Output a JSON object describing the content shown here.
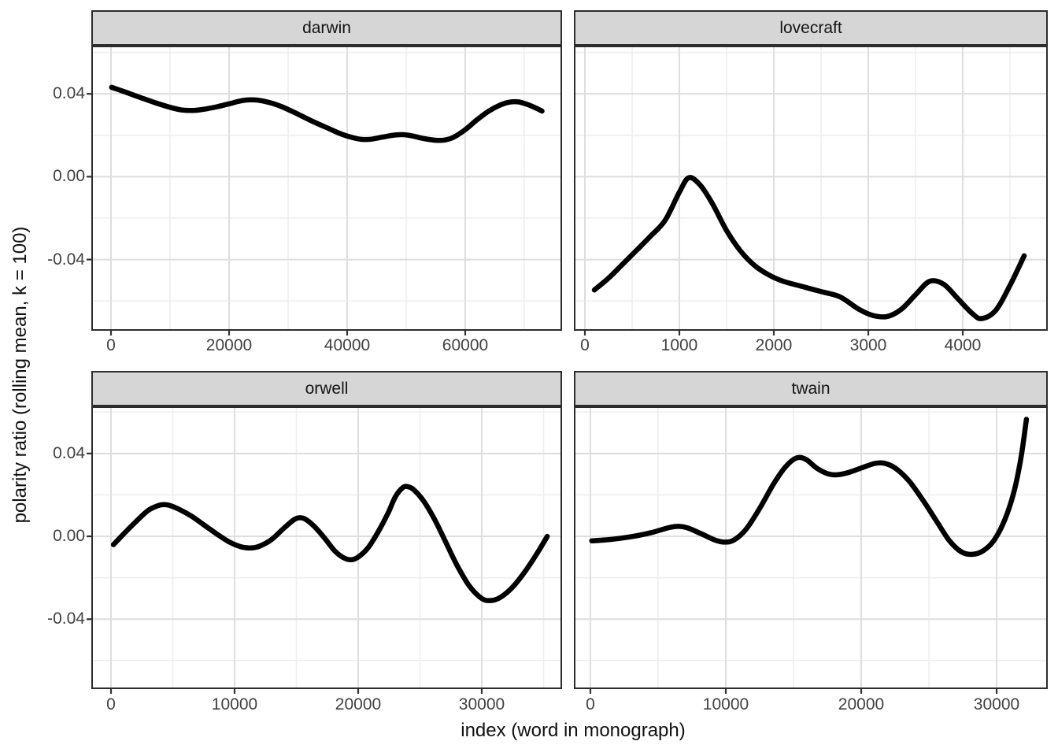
{
  "figure": {
    "x_axis_title": "index (word in monograph)",
    "y_axis_title": "polarity ratio (rolling mean, k = 100)",
    "colors": {
      "line": "#000000",
      "strip_background": "#d6d6d6",
      "panel_border": "#2d2d2d",
      "grid_major": "#dedede",
      "grid_minor": "#efefef",
      "tick_mark": "#333333",
      "tick_text": "#414141",
      "title_text": "#111111"
    },
    "y_axis": {
      "ticks": [
        {
          "value": 0.04,
          "label": "0.04"
        },
        {
          "value": 0.0,
          "label": "0.00"
        },
        {
          "value": -0.04,
          "label": "-0.04"
        }
      ],
      "minor_breaks": [
        0.06,
        0.02,
        -0.02,
        -0.06
      ]
    }
  },
  "chart_data": {
    "type": "line",
    "title": "",
    "xlabel": "index (word in monograph)",
    "ylabel": "polarity ratio (rolling mean, k = 100)",
    "ylim": [
      -0.074,
      0.063
    ],
    "grid": "on",
    "legend": "none",
    "facets": [
      {
        "label": "darwin",
        "xlim": [
          -3067,
          76133
        ],
        "x_ticks": [
          {
            "value": 0,
            "label": "0"
          },
          {
            "value": 20000,
            "label": "20000"
          },
          {
            "value": 40000,
            "label": "40000"
          },
          {
            "value": 60000,
            "label": "60000"
          }
        ],
        "x_minor": [
          10000,
          30000,
          50000,
          70000
        ],
        "points": [
          [
            100,
            0.0432
          ],
          [
            2500,
            0.0408
          ],
          [
            5000,
            0.0382
          ],
          [
            7500,
            0.0357
          ],
          [
            10000,
            0.0335
          ],
          [
            12000,
            0.0322
          ],
          [
            14000,
            0.032
          ],
          [
            16000,
            0.0327
          ],
          [
            18000,
            0.0338
          ],
          [
            20000,
            0.0352
          ],
          [
            22000,
            0.0366
          ],
          [
            23500,
            0.0371
          ],
          [
            25000,
            0.0369
          ],
          [
            27000,
            0.0357
          ],
          [
            29000,
            0.0337
          ],
          [
            31000,
            0.0311
          ],
          [
            33000,
            0.0283
          ],
          [
            35000,
            0.0256
          ],
          [
            37000,
            0.0231
          ],
          [
            39000,
            0.0206
          ],
          [
            41000,
            0.0188
          ],
          [
            42500,
            0.018
          ],
          [
            44000,
            0.0181
          ],
          [
            46000,
            0.0191
          ],
          [
            48000,
            0.0201
          ],
          [
            49500,
            0.0203
          ],
          [
            51000,
            0.0197
          ],
          [
            53000,
            0.0184
          ],
          [
            55000,
            0.0176
          ],
          [
            56500,
            0.0177
          ],
          [
            58000,
            0.019
          ],
          [
            60000,
            0.0227
          ],
          [
            62000,
            0.0275
          ],
          [
            64000,
            0.0317
          ],
          [
            66000,
            0.0347
          ],
          [
            67500,
            0.036
          ],
          [
            69000,
            0.0361
          ],
          [
            70500,
            0.0349
          ],
          [
            72000,
            0.0331
          ],
          [
            73000,
            0.0317
          ]
        ]
      },
      {
        "label": "lovecraft",
        "xlim": [
          -100,
          4883
        ],
        "x_ticks": [
          {
            "value": 0,
            "label": "0"
          },
          {
            "value": 1000,
            "label": "1000"
          },
          {
            "value": 2000,
            "label": "2000"
          },
          {
            "value": 3000,
            "label": "3000"
          },
          {
            "value": 4000,
            "label": "4000"
          }
        ],
        "x_minor": [
          500,
          1500,
          2500,
          3500,
          4500
        ],
        "points": [
          [
            100,
            -0.0547
          ],
          [
            250,
            -0.049
          ],
          [
            400,
            -0.0422
          ],
          [
            550,
            -0.0354
          ],
          [
            700,
            -0.0285
          ],
          [
            850,
            -0.021
          ],
          [
            1000,
            -0.0075
          ],
          [
            1100,
            -0.0005
          ],
          [
            1220,
            -0.004
          ],
          [
            1350,
            -0.013
          ],
          [
            1500,
            -0.026
          ],
          [
            1650,
            -0.036
          ],
          [
            1800,
            -0.043
          ],
          [
            1950,
            -0.0475
          ],
          [
            2100,
            -0.0505
          ],
          [
            2300,
            -0.053
          ],
          [
            2500,
            -0.0555
          ],
          [
            2700,
            -0.058
          ],
          [
            2900,
            -0.064
          ],
          [
            3050,
            -0.067
          ],
          [
            3200,
            -0.0675
          ],
          [
            3350,
            -0.064
          ],
          [
            3500,
            -0.057
          ],
          [
            3650,
            -0.0505
          ],
          [
            3800,
            -0.052
          ],
          [
            3950,
            -0.059
          ],
          [
            4100,
            -0.066
          ],
          [
            4200,
            -0.0685
          ],
          [
            4350,
            -0.0645
          ],
          [
            4500,
            -0.0525
          ],
          [
            4650,
            -0.0382
          ]
        ]
      },
      {
        "label": "orwell",
        "xlim": [
          -1465,
          36370
        ],
        "x_ticks": [
          {
            "value": 0,
            "label": "0"
          },
          {
            "value": 10000,
            "label": "10000"
          },
          {
            "value": 20000,
            "label": "20000"
          },
          {
            "value": 30000,
            "label": "30000"
          }
        ],
        "x_minor": [
          5000,
          15000,
          25000,
          35000
        ],
        "points": [
          [
            200,
            -0.004
          ],
          [
            1000,
            0.001
          ],
          [
            2000,
            0.007
          ],
          [
            3000,
            0.0125
          ],
          [
            3800,
            0.0148
          ],
          [
            4300,
            0.0153
          ],
          [
            4800,
            0.0148
          ],
          [
            5500,
            0.0131
          ],
          [
            6500,
            0.0098
          ],
          [
            7500,
            0.0056
          ],
          [
            8500,
            0.0014
          ],
          [
            9500,
            -0.0025
          ],
          [
            10500,
            -0.005
          ],
          [
            11300,
            -0.0056
          ],
          [
            12000,
            -0.0048
          ],
          [
            13000,
            -0.0015
          ],
          [
            14000,
            0.004
          ],
          [
            14800,
            0.008
          ],
          [
            15300,
            0.009
          ],
          [
            15800,
            0.008
          ],
          [
            16500,
            0.0045
          ],
          [
            17300,
            -0.001
          ],
          [
            18100,
            -0.007
          ],
          [
            18800,
            -0.0103
          ],
          [
            19400,
            -0.0113
          ],
          [
            20000,
            -0.01
          ],
          [
            20800,
            -0.0055
          ],
          [
            21600,
            0.002
          ],
          [
            22400,
            0.011
          ],
          [
            23000,
            0.019
          ],
          [
            23600,
            0.0235
          ],
          [
            24000,
            0.024
          ],
          [
            24500,
            0.0225
          ],
          [
            25300,
            0.017
          ],
          [
            26200,
            0.008
          ],
          [
            27100,
            -0.003
          ],
          [
            28000,
            -0.014
          ],
          [
            29000,
            -0.024
          ],
          [
            30000,
            -0.03
          ],
          [
            30700,
            -0.031
          ],
          [
            31500,
            -0.0295
          ],
          [
            32500,
            -0.0245
          ],
          [
            33500,
            -0.017
          ],
          [
            34500,
            -0.008
          ],
          [
            35300,
            0.0
          ]
        ]
      },
      {
        "label": "twain",
        "xlim": [
          -1105,
          33660
        ],
        "x_ticks": [
          {
            "value": 0,
            "label": "0"
          },
          {
            "value": 10000,
            "label": "10000"
          },
          {
            "value": 20000,
            "label": "20000"
          },
          {
            "value": 30000,
            "label": "30000"
          }
        ],
        "x_minor": [
          5000,
          15000,
          25000
        ],
        "points": [
          [
            100,
            -0.0022
          ],
          [
            1500,
            -0.0015
          ],
          [
            3000,
            -0.0002
          ],
          [
            4500,
            0.0018
          ],
          [
            5800,
            0.0042
          ],
          [
            6500,
            0.0048
          ],
          [
            7200,
            0.004
          ],
          [
            8200,
            0.0012
          ],
          [
            9200,
            -0.0018
          ],
          [
            9900,
            -0.0028
          ],
          [
            10600,
            -0.0018
          ],
          [
            11500,
            0.0035
          ],
          [
            12500,
            0.0135
          ],
          [
            13500,
            0.025
          ],
          [
            14400,
            0.0335
          ],
          [
            15200,
            0.0378
          ],
          [
            15900,
            0.0372
          ],
          [
            16700,
            0.033
          ],
          [
            17500,
            0.0303
          ],
          [
            18200,
            0.0297
          ],
          [
            19000,
            0.0307
          ],
          [
            20000,
            0.033
          ],
          [
            21000,
            0.0352
          ],
          [
            21700,
            0.0353
          ],
          [
            22500,
            0.033
          ],
          [
            23500,
            0.027
          ],
          [
            24500,
            0.018
          ],
          [
            25500,
            0.008
          ],
          [
            26500,
            -0.002
          ],
          [
            27400,
            -0.0075
          ],
          [
            28200,
            -0.0087
          ],
          [
            29000,
            -0.007
          ],
          [
            29800,
            -0.002
          ],
          [
            30600,
            0.008
          ],
          [
            31300,
            0.022
          ],
          [
            31800,
            0.038
          ],
          [
            32200,
            0.0565
          ]
        ]
      }
    ]
  }
}
